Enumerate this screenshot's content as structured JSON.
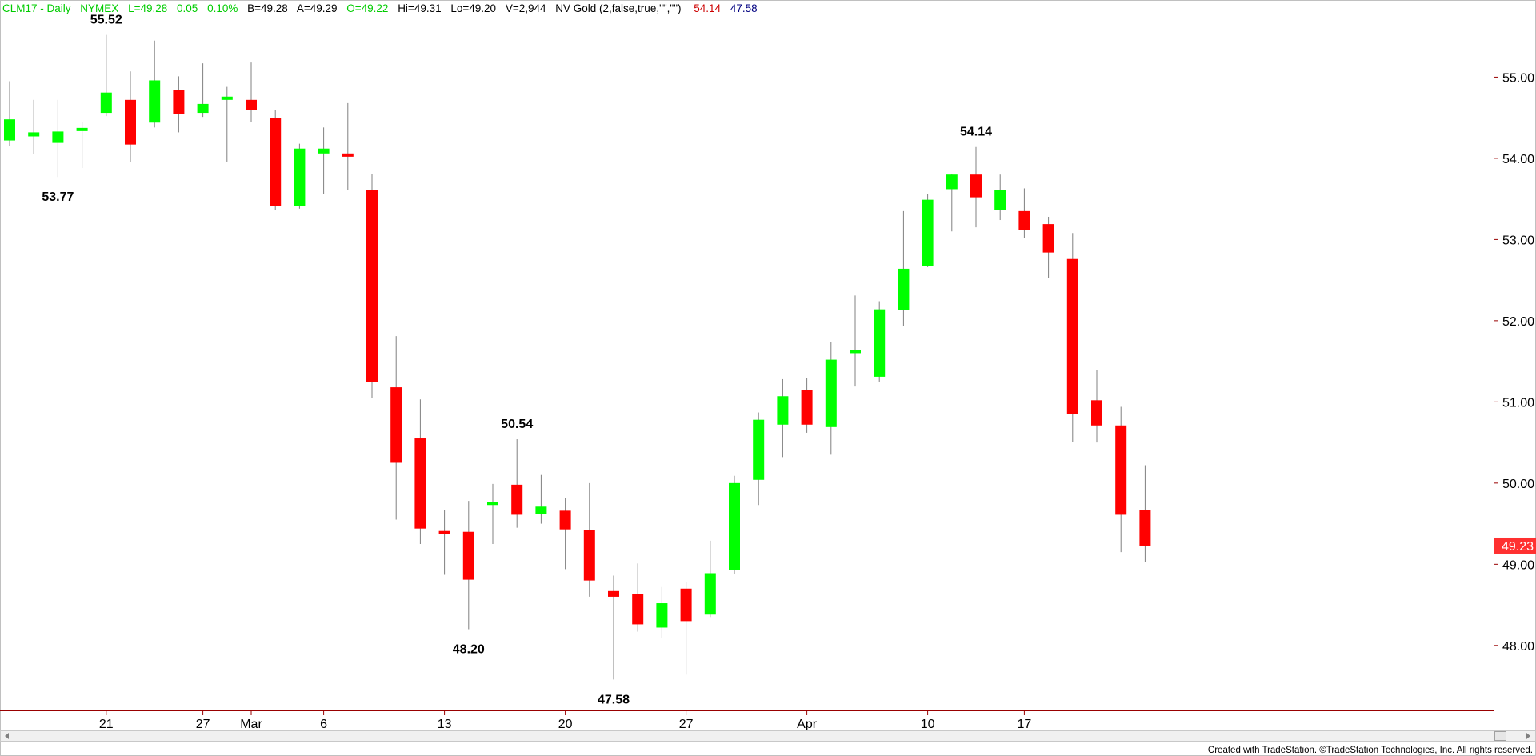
{
  "header": {
    "symbol": "CLM17 - Daily",
    "exchange": "NYMEX",
    "last": "L=49.28",
    "change": "0.05",
    "change_pct": "0.10%",
    "bid": "B=49.28",
    "ask": "A=49.29",
    "open": "O=49.22",
    "high": "Hi=49.31",
    "low": "Lo=49.20",
    "volume": "V=2,944",
    "indicator": "NV Gold (2,false,true,\"\",\"\")",
    "ind_high": "54.14",
    "ind_low": "47.58"
  },
  "colors": {
    "up": "#00ff00",
    "down": "#ff0000",
    "header_green": "#00cc00",
    "header_red": "#cc0000",
    "header_blue": "#000080",
    "axis": "#990000"
  },
  "footer": {
    "credit": "Created with TradeStation. ©TradeStation Technologies, Inc. All rights reserved."
  },
  "chart_data": {
    "type": "candlestick",
    "ylim": [
      47.2,
      55.95
    ],
    "y_ticks": [
      "48.00",
      "49.00",
      "50.00",
      "51.00",
      "52.00",
      "53.00",
      "54.00",
      "55.00"
    ],
    "x_tick_labels": [
      {
        "label": "21",
        "bar": 4
      },
      {
        "label": "27",
        "bar": 8
      },
      {
        "label": "Mar",
        "bar": 10
      },
      {
        "label": "6",
        "bar": 13
      },
      {
        "label": "13",
        "bar": 18
      },
      {
        "label": "20",
        "bar": 23
      },
      {
        "label": "27",
        "bar": 28
      },
      {
        "label": "Apr",
        "bar": 33
      },
      {
        "label": "10",
        "bar": 38
      },
      {
        "label": "17",
        "bar": 42
      }
    ],
    "last_price": "49.23",
    "candles": [
      {
        "o": 54.22,
        "h": 54.95,
        "l": 54.15,
        "c": 54.48
      },
      {
        "o": 54.27,
        "h": 54.72,
        "l": 54.05,
        "c": 54.32
      },
      {
        "o": 54.19,
        "h": 54.72,
        "l": 53.77,
        "c": 54.33
      },
      {
        "o": 54.35,
        "h": 54.45,
        "l": 53.88,
        "c": 54.36
      },
      {
        "o": 54.56,
        "h": 55.52,
        "l": 54.52,
        "c": 54.81
      },
      {
        "o": 54.72,
        "h": 55.07,
        "l": 53.96,
        "c": 54.17
      },
      {
        "o": 54.44,
        "h": 55.45,
        "l": 54.38,
        "c": 54.96
      },
      {
        "o": 54.84,
        "h": 55.01,
        "l": 54.32,
        "c": 54.55
      },
      {
        "o": 54.56,
        "h": 55.17,
        "l": 54.51,
        "c": 54.67
      },
      {
        "o": 54.72,
        "h": 54.88,
        "l": 53.96,
        "c": 54.76
      },
      {
        "o": 54.72,
        "h": 55.18,
        "l": 54.45,
        "c": 54.6
      },
      {
        "o": 54.5,
        "h": 54.6,
        "l": 53.36,
        "c": 53.41
      },
      {
        "o": 53.41,
        "h": 54.18,
        "l": 53.38,
        "c": 54.12
      },
      {
        "o": 54.06,
        "h": 54.38,
        "l": 53.56,
        "c": 54.12
      },
      {
        "o": 54.06,
        "h": 54.68,
        "l": 53.61,
        "c": 54.02
      },
      {
        "o": 53.61,
        "h": 53.81,
        "l": 51.05,
        "c": 51.24
      },
      {
        "o": 51.18,
        "h": 51.81,
        "l": 49.55,
        "c": 50.25
      },
      {
        "o": 50.55,
        "h": 51.03,
        "l": 49.25,
        "c": 49.44
      },
      {
        "o": 49.41,
        "h": 49.67,
        "l": 48.87,
        "c": 49.37
      },
      {
        "o": 49.4,
        "h": 49.78,
        "l": 48.2,
        "c": 48.81
      },
      {
        "o": 49.73,
        "h": 49.99,
        "l": 49.25,
        "c": 49.77
      },
      {
        "o": 49.98,
        "h": 50.54,
        "l": 49.45,
        "c": 49.61
      },
      {
        "o": 49.62,
        "h": 50.1,
        "l": 49.5,
        "c": 49.71
      },
      {
        "o": 49.66,
        "h": 49.82,
        "l": 48.94,
        "c": 49.43
      },
      {
        "o": 49.42,
        "h": 50.0,
        "l": 48.6,
        "c": 48.8
      },
      {
        "o": 48.67,
        "h": 48.86,
        "l": 47.58,
        "c": 48.6
      },
      {
        "o": 48.63,
        "h": 49.01,
        "l": 48.17,
        "c": 48.26
      },
      {
        "o": 48.22,
        "h": 48.72,
        "l": 48.09,
        "c": 48.52
      },
      {
        "o": 48.7,
        "h": 48.78,
        "l": 47.64,
        "c": 48.3
      },
      {
        "o": 48.38,
        "h": 49.29,
        "l": 48.35,
        "c": 48.89
      },
      {
        "o": 48.93,
        "h": 50.09,
        "l": 48.88,
        "c": 50.0
      },
      {
        "o": 50.04,
        "h": 50.87,
        "l": 49.73,
        "c": 50.78
      },
      {
        "o": 50.72,
        "h": 51.28,
        "l": 50.32,
        "c": 51.07
      },
      {
        "o": 51.15,
        "h": 51.29,
        "l": 50.62,
        "c": 50.72
      },
      {
        "o": 50.69,
        "h": 51.74,
        "l": 50.35,
        "c": 51.52
      },
      {
        "o": 51.61,
        "h": 52.31,
        "l": 51.19,
        "c": 51.63
      },
      {
        "o": 51.31,
        "h": 52.24,
        "l": 51.25,
        "c": 52.14
      },
      {
        "o": 52.13,
        "h": 53.35,
        "l": 51.93,
        "c": 52.64
      },
      {
        "o": 52.67,
        "h": 53.56,
        "l": 52.66,
        "c": 53.49
      },
      {
        "o": 53.62,
        "h": 53.81,
        "l": 53.1,
        "c": 53.8
      },
      {
        "o": 53.8,
        "h": 54.14,
        "l": 53.15,
        "c": 53.52
      },
      {
        "o": 53.36,
        "h": 53.8,
        "l": 53.24,
        "c": 53.61
      },
      {
        "o": 53.35,
        "h": 53.63,
        "l": 53.02,
        "c": 53.12
      },
      {
        "o": 53.19,
        "h": 53.28,
        "l": 52.53,
        "c": 52.84
      },
      {
        "o": 52.76,
        "h": 53.08,
        "l": 50.51,
        "c": 50.85
      },
      {
        "o": 51.02,
        "h": 51.39,
        "l": 50.5,
        "c": 50.71
      },
      {
        "o": 50.71,
        "h": 50.94,
        "l": 49.15,
        "c": 49.61
      },
      {
        "o": 49.67,
        "h": 50.22,
        "l": 49.03,
        "c": 49.23
      }
    ],
    "annotations": [
      {
        "text": "55.52",
        "bar": 4,
        "price": 55.52,
        "pos": "above"
      },
      {
        "text": "53.77",
        "bar": 2,
        "price": 53.77,
        "pos": "below"
      },
      {
        "text": "50.54",
        "bar": 21,
        "price": 50.54,
        "pos": "above"
      },
      {
        "text": "48.20",
        "bar": 19,
        "price": 48.2,
        "pos": "below"
      },
      {
        "text": "47.58",
        "bar": 25,
        "price": 47.58,
        "pos": "below"
      },
      {
        "text": "54.14",
        "bar": 40,
        "price": 54.14,
        "pos": "above"
      }
    ]
  }
}
